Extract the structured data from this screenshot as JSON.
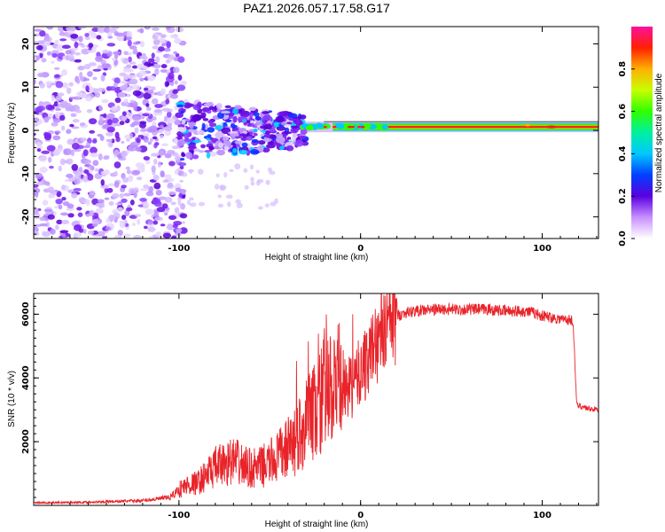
{
  "title": "PAZ1.2026.057.17.58.G17",
  "colors": {
    "snr_line": "#e8242a",
    "blob_dark": "#5a00d6",
    "blob_light": "#c9a8ff",
    "ridge": "#ff1a1a"
  },
  "chart_data": [
    {
      "type": "heatmap",
      "title": "",
      "xlabel": "Height of straight line (km)",
      "ylabel": "Frequency (Hz)",
      "xlim": [
        -180,
        131
      ],
      "ylim": [
        -25,
        24
      ],
      "xticks": [
        -100,
        0,
        100
      ],
      "xtick_labels": [
        "-100",
        "0",
        "100"
      ],
      "yticks": [
        -20,
        -10,
        0,
        10,
        20
      ],
      "ytick_labels": [
        "-20",
        "-10",
        "0",
        "10",
        "20"
      ],
      "colorbar": {
        "label": "Normalized spectral amplitude",
        "range": [
          0,
          1
        ],
        "ticks": [
          0.0,
          0.2,
          0.4,
          0.6,
          0.8
        ],
        "tick_labels": [
          "0.0",
          "0.2",
          "0.4",
          "0.6",
          "0.8"
        ]
      },
      "features": [
        {
          "region": "noise",
          "x_range": [
            -180,
            -100
          ],
          "freq_range": [
            -25,
            24
          ],
          "amplitude": 0.1
        },
        {
          "region": "transition",
          "x_range": [
            -100,
            -30
          ],
          "freq_range": [
            -7,
            7
          ],
          "amplitude": 0.15
        },
        {
          "region": "main_tone",
          "x_range": [
            -30,
            131
          ],
          "freq": 0.8,
          "amplitude": 0.9
        }
      ]
    },
    {
      "type": "line",
      "title": "",
      "xlabel": "Height of straight line (km)",
      "ylabel": "SNR (10 * v/v)",
      "xlim": [
        -180,
        131
      ],
      "ylim": [
        0,
        6650
      ],
      "xticks": [
        -100,
        0,
        100
      ],
      "xtick_labels": [
        "-100",
        "0",
        "100"
      ],
      "yticks": [
        2000,
        4000,
        6000
      ],
      "ytick_labels": [
        "2000",
        "4000",
        "6000"
      ],
      "series": [
        {
          "name": "SNR",
          "x": [
            -180,
            -150,
            -120,
            -105,
            -100,
            -95,
            -90,
            -85,
            -80,
            -75,
            -70,
            -65,
            -60,
            -55,
            -50,
            -45,
            -40,
            -35,
            -30,
            -25,
            -20,
            -15,
            -12,
            -10,
            -5,
            0,
            5,
            10,
            15,
            20,
            25,
            30,
            40,
            50,
            60,
            70,
            80,
            90,
            95,
            100,
            110,
            117,
            119,
            125,
            131
          ],
          "values": [
            80,
            100,
            150,
            250,
            500,
            650,
            700,
            950,
            1200,
            1300,
            1400,
            1250,
            1150,
            1200,
            1350,
            1550,
            1800,
            2100,
            2600,
            3000,
            3450,
            3550,
            3750,
            3600,
            3700,
            4200,
            4700,
            5200,
            5650,
            5950,
            6050,
            6100,
            6150,
            6150,
            6150,
            6150,
            6100,
            6100,
            6050,
            5950,
            5850,
            5800,
            3150,
            3050,
            3000
          ]
        }
      ]
    }
  ]
}
